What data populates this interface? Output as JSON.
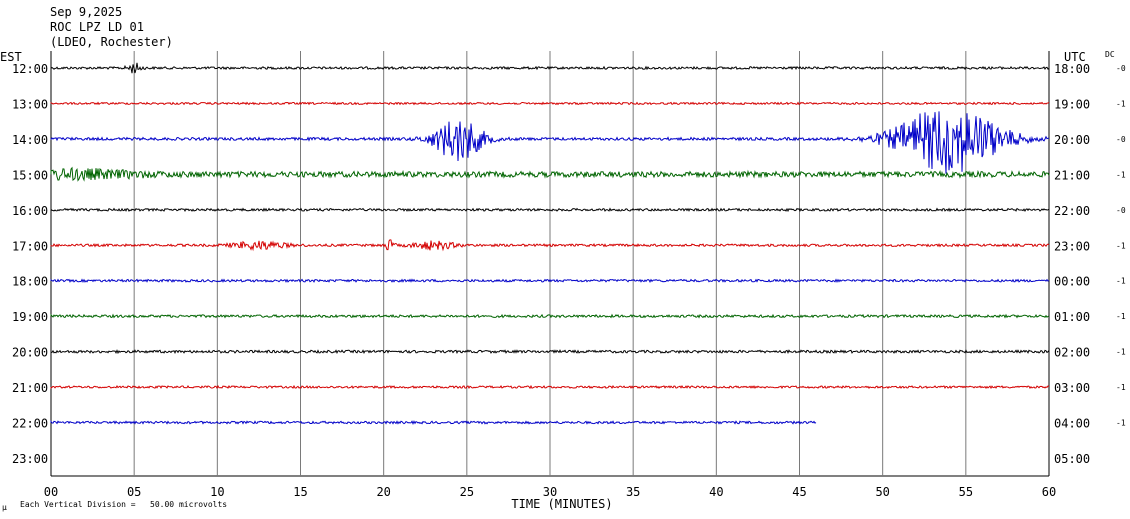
{
  "header": {
    "date": "Sep 9,2025",
    "station": "ROC LPZ LD 01",
    "network": "(LDEO, Rochester)"
  },
  "left_axis_label": "EST",
  "right_axis_label": "UTC",
  "dc_label": "DC",
  "footer": {
    "scale_prefix": "µ",
    "scale_note": "Each Vertical Division =   50.00 microvolts"
  },
  "chart_data": {
    "type": "line",
    "xlabel": "TIME (MINUTES)",
    "xlim": [
      0,
      60
    ],
    "x_ticks": [
      "00",
      "05",
      "10",
      "15",
      "20",
      "25",
      "30",
      "35",
      "40",
      "45",
      "50",
      "55",
      "60"
    ],
    "colors": [
      "#000000",
      "#d40000",
      "#0000c8",
      "#006400"
    ],
    "rows": [
      {
        "est": "12:00",
        "utc": "18:00",
        "dc": "-0",
        "color": "#000000",
        "end_minute": 60,
        "bursts": [
          {
            "at": 5.0,
            "amp": 5,
            "width": 0.4
          }
        ],
        "noise": 1.2
      },
      {
        "est": "13:00",
        "utc": "19:00",
        "dc": "-1",
        "color": "#d40000",
        "end_minute": 60,
        "bursts": [],
        "noise": 1.0
      },
      {
        "est": "14:00",
        "utc": "20:00",
        "dc": "-0",
        "color": "#0000c8",
        "end_minute": 60,
        "bursts": [
          {
            "at": 24.5,
            "amp": 22,
            "width": 1.4
          },
          {
            "at": 54.0,
            "amp": 34,
            "width": 3.0
          }
        ],
        "noise": 1.4
      },
      {
        "est": "15:00",
        "utc": "21:00",
        "dc": "-1",
        "color": "#006400",
        "end_minute": 60,
        "bursts": [
          {
            "at": 1.0,
            "amp": 4,
            "width": 4
          }
        ],
        "noise": 2.8
      },
      {
        "est": "16:00",
        "utc": "22:00",
        "dc": "-0",
        "color": "#000000",
        "end_minute": 60,
        "bursts": [],
        "noise": 1.2
      },
      {
        "est": "17:00",
        "utc": "23:00",
        "dc": "-1",
        "color": "#d40000",
        "end_minute": 60,
        "bursts": [
          {
            "at": 12.5,
            "amp": 4,
            "width": 1.5
          },
          {
            "at": 20.3,
            "amp": 5,
            "width": 0.3
          },
          {
            "at": 23.0,
            "amp": 4,
            "width": 1.2
          }
        ],
        "noise": 1.2
      },
      {
        "est": "18:00",
        "utc": "00:00",
        "dc": "-1",
        "color": "#0000c8",
        "end_minute": 60,
        "bursts": [],
        "noise": 1.2
      },
      {
        "est": "19:00",
        "utc": "01:00",
        "dc": "-1",
        "color": "#006400",
        "end_minute": 60,
        "bursts": [],
        "noise": 1.3
      },
      {
        "est": "20:00",
        "utc": "02:00",
        "dc": "-1",
        "color": "#000000",
        "end_minute": 60,
        "bursts": [],
        "noise": 1.3
      },
      {
        "est": "21:00",
        "utc": "03:00",
        "dc": "-1",
        "color": "#d40000",
        "end_minute": 60,
        "bursts": [],
        "noise": 1.1
      },
      {
        "est": "22:00",
        "utc": "04:00",
        "dc": "-1",
        "color": "#0000c8",
        "end_minute": 46,
        "bursts": [],
        "noise": 1.2
      },
      {
        "est": "23:00",
        "utc": "05:00",
        "dc": "",
        "color": "#006400",
        "end_minute": 0,
        "bursts": [],
        "noise": 0
      }
    ]
  }
}
